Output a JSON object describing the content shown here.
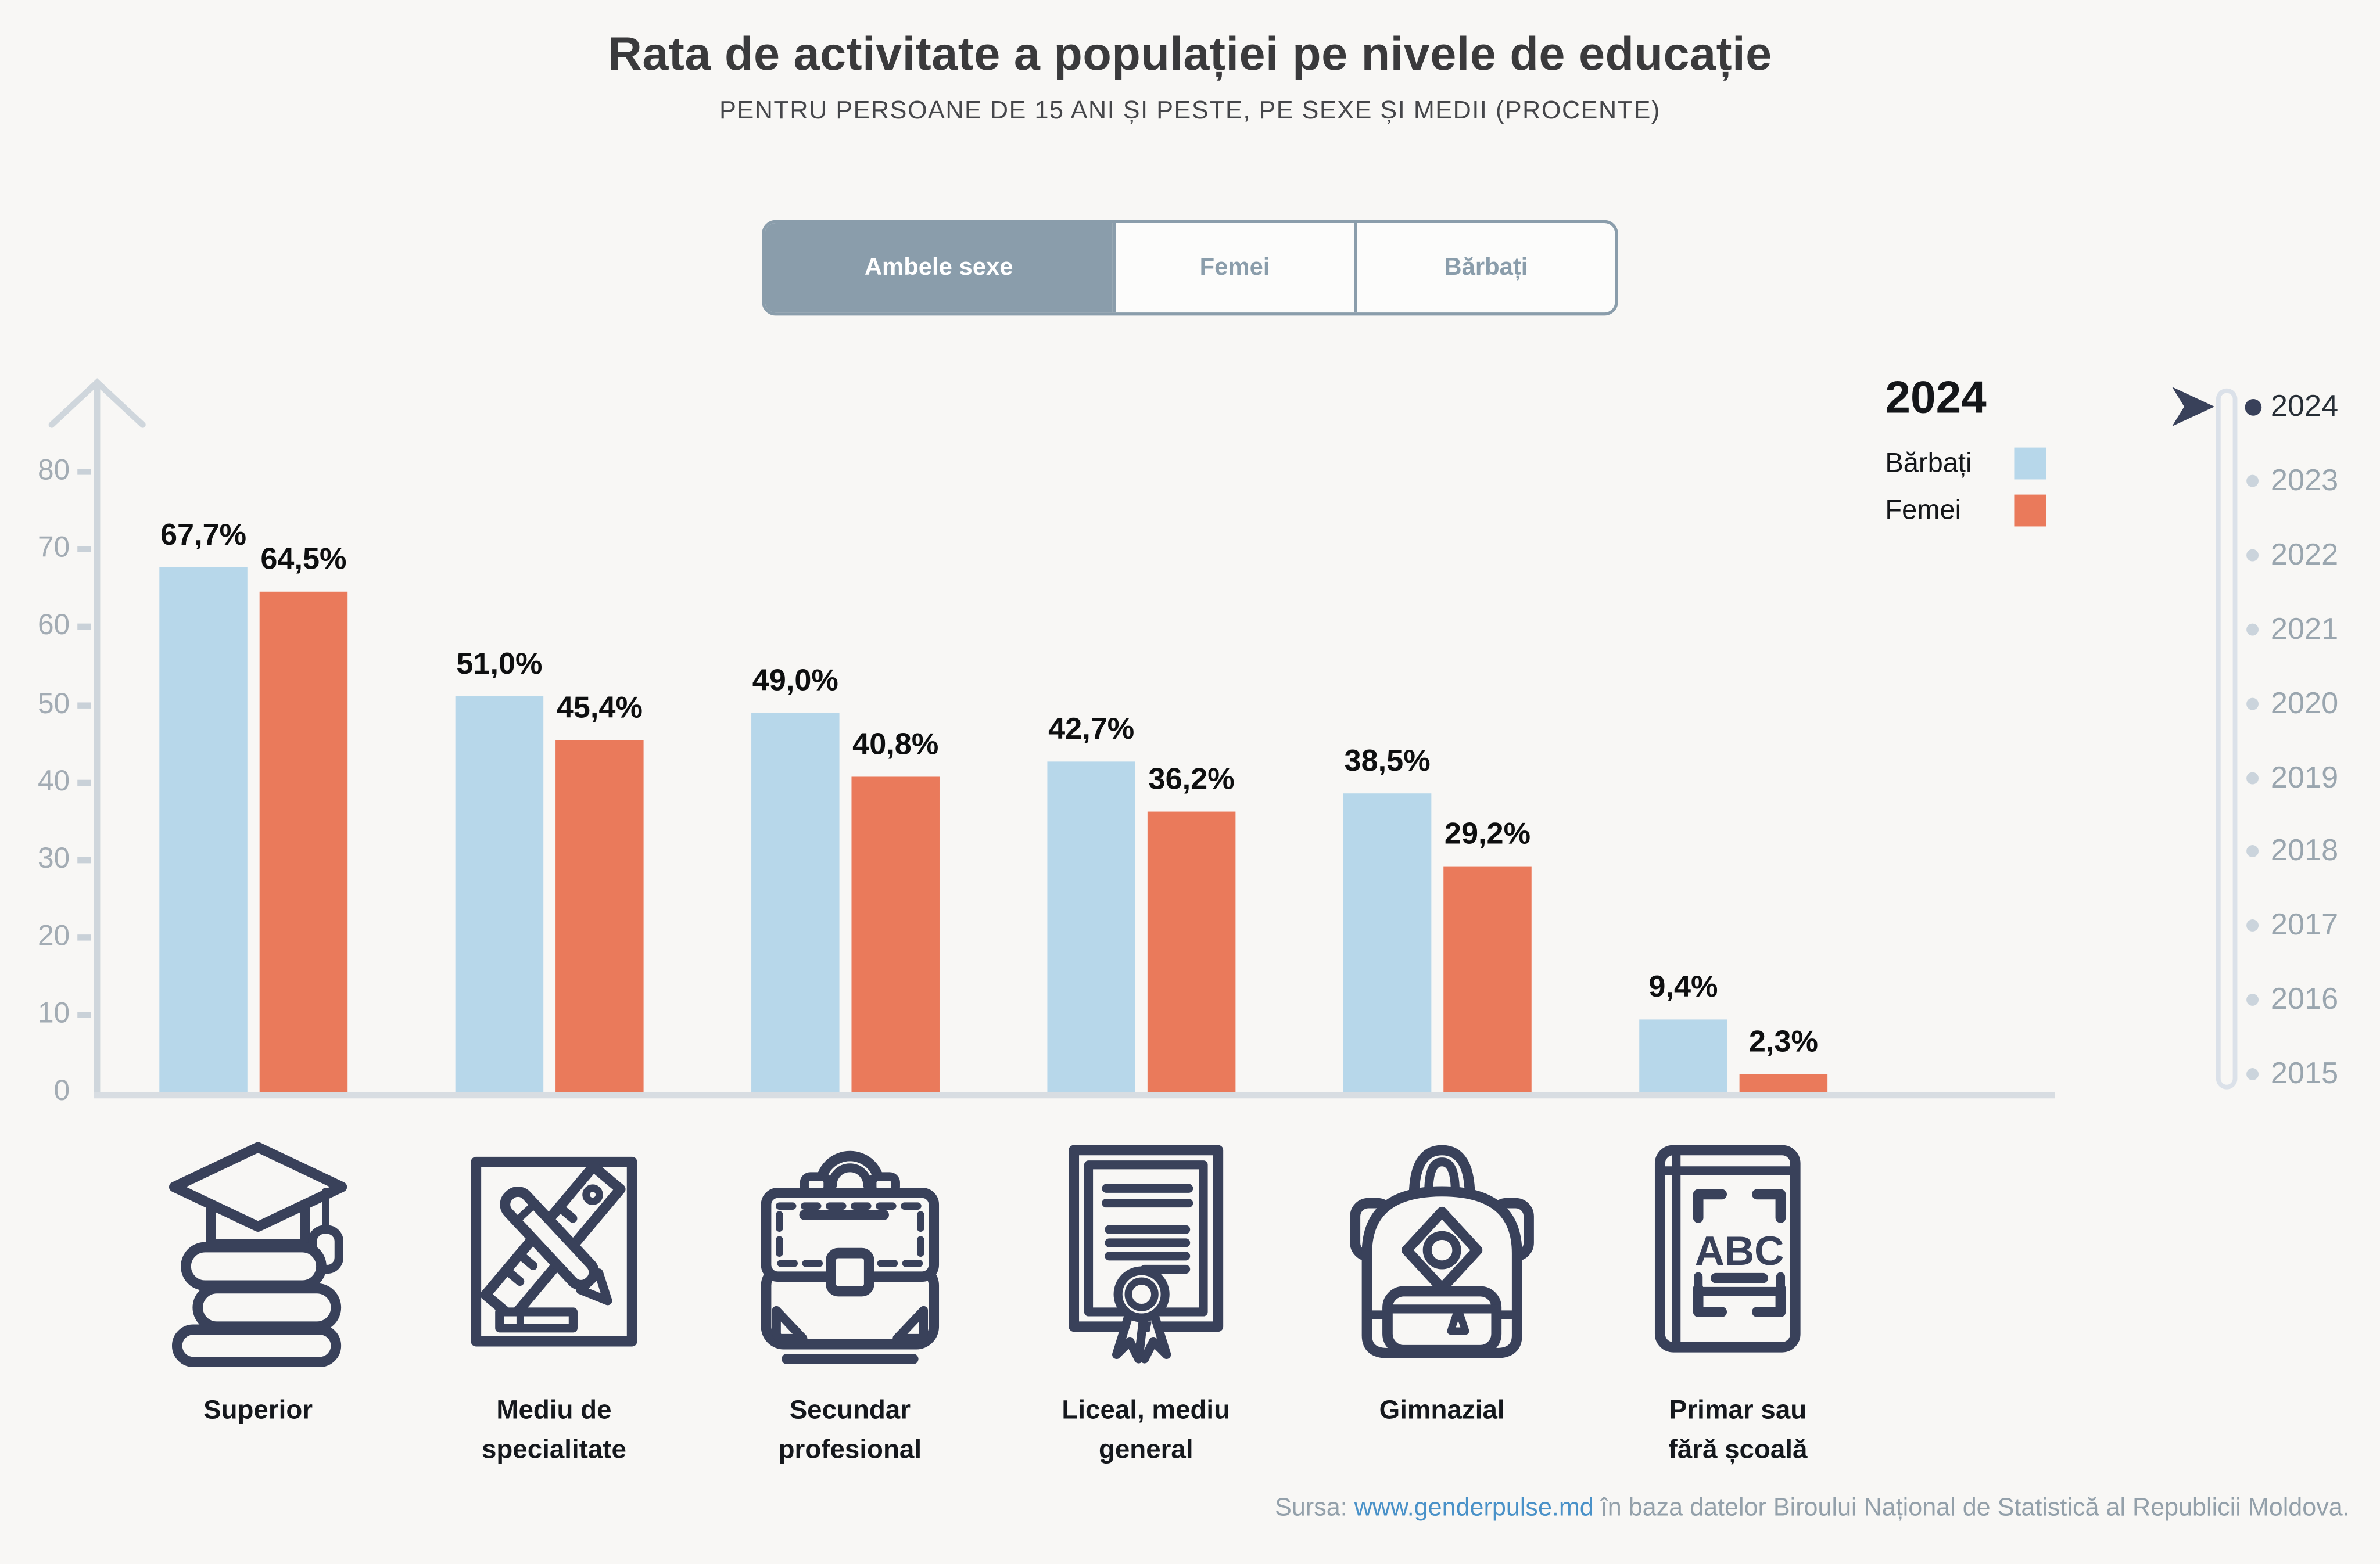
{
  "header": {
    "title": "Rata de activitate a populației pe nivele de educație",
    "subtitle": "PENTRU PERSOANE DE 15 ANI ȘI PESTE, PE SEXE ȘI MEDII (PROCENTE)"
  },
  "tabs": [
    {
      "label": "Ambele sexe",
      "active": true
    },
    {
      "label": "Femei",
      "active": false
    },
    {
      "label": "Bărbați",
      "active": false
    }
  ],
  "chart_data": {
    "type": "bar",
    "title": "Rata de activitate a populației pe nivele de educație",
    "subtitle": "Pentru persoane de 15 ani și peste, pe sexe și medii (procente)",
    "unit": "%",
    "categories": [
      "Superior",
      "Mediu de specialitate",
      "Secundar profesional",
      "Liceal, mediu general",
      "Gimnazial",
      "Primar sau fără școală"
    ],
    "series": [
      {
        "name": "Bărbați",
        "color": "#B7D7EA",
        "values": [
          67.7,
          51.0,
          49.0,
          42.7,
          38.5,
          9.4
        ],
        "labels": [
          "67,7%",
          "51,0%",
          "49,0%",
          "42,7%",
          "38,5%",
          "9,4%"
        ]
      },
      {
        "name": "Femei",
        "color": "#EA7A5B",
        "values": [
          64.5,
          45.4,
          40.8,
          36.2,
          29.2,
          2.3
        ],
        "labels": [
          "64,5%",
          "45,4%",
          "40,8%",
          "36,2%",
          "29,2%",
          "2,3%"
        ]
      }
    ],
    "ylim": [
      0,
      80
    ],
    "yticks": [
      0,
      10,
      20,
      30,
      40,
      50,
      60,
      70,
      80
    ],
    "grid": false,
    "legend_position": "top-right",
    "year": "2024"
  },
  "legend": {
    "year": "2024",
    "items": [
      {
        "label": "Bărbați",
        "color": "#B7D7EA"
      },
      {
        "label": "Femei",
        "color": "#EA7A5B"
      }
    ]
  },
  "timeline": {
    "years": [
      "2024",
      "2023",
      "2022",
      "2021",
      "2020",
      "2019",
      "2018",
      "2017",
      "2016",
      "2015"
    ],
    "active_year": "2024"
  },
  "education_levels": [
    {
      "icon": "books-graduation-cap-icon",
      "label_lines": [
        "Superior"
      ]
    },
    {
      "icon": "ruler-pencil-icon",
      "label_lines": [
        "Mediu de",
        "specialitate"
      ]
    },
    {
      "icon": "briefcase-icon",
      "label_lines": [
        "Secundar",
        "profesional"
      ]
    },
    {
      "icon": "diploma-icon",
      "label_lines": [
        "Liceal, mediu",
        "general"
      ]
    },
    {
      "icon": "backpack-icon",
      "label_lines": [
        "Gimnazial"
      ]
    },
    {
      "icon": "abc-book-icon",
      "label_lines": [
        "Primar sau",
        "fără școală"
      ]
    }
  ],
  "icon_text": {
    "abc": "ABC"
  },
  "source": {
    "prefix": "Sursa: ",
    "link_text": "www.genderpulse.md",
    "suffix": " în baza datelor Biroului Național de Statistică al Republicii Moldova."
  },
  "colors": {
    "background": "#F8F7F5",
    "male_bar": "#B7D7EA",
    "female_bar": "#EA7A5B",
    "tab_accent": "#8A9DAB",
    "icon_navy": "#39415A",
    "axis_gray": "#CFD6DC",
    "year_active": "#272E36",
    "year_inactive": "#9AA6AF",
    "source_link": "#4991C8"
  }
}
